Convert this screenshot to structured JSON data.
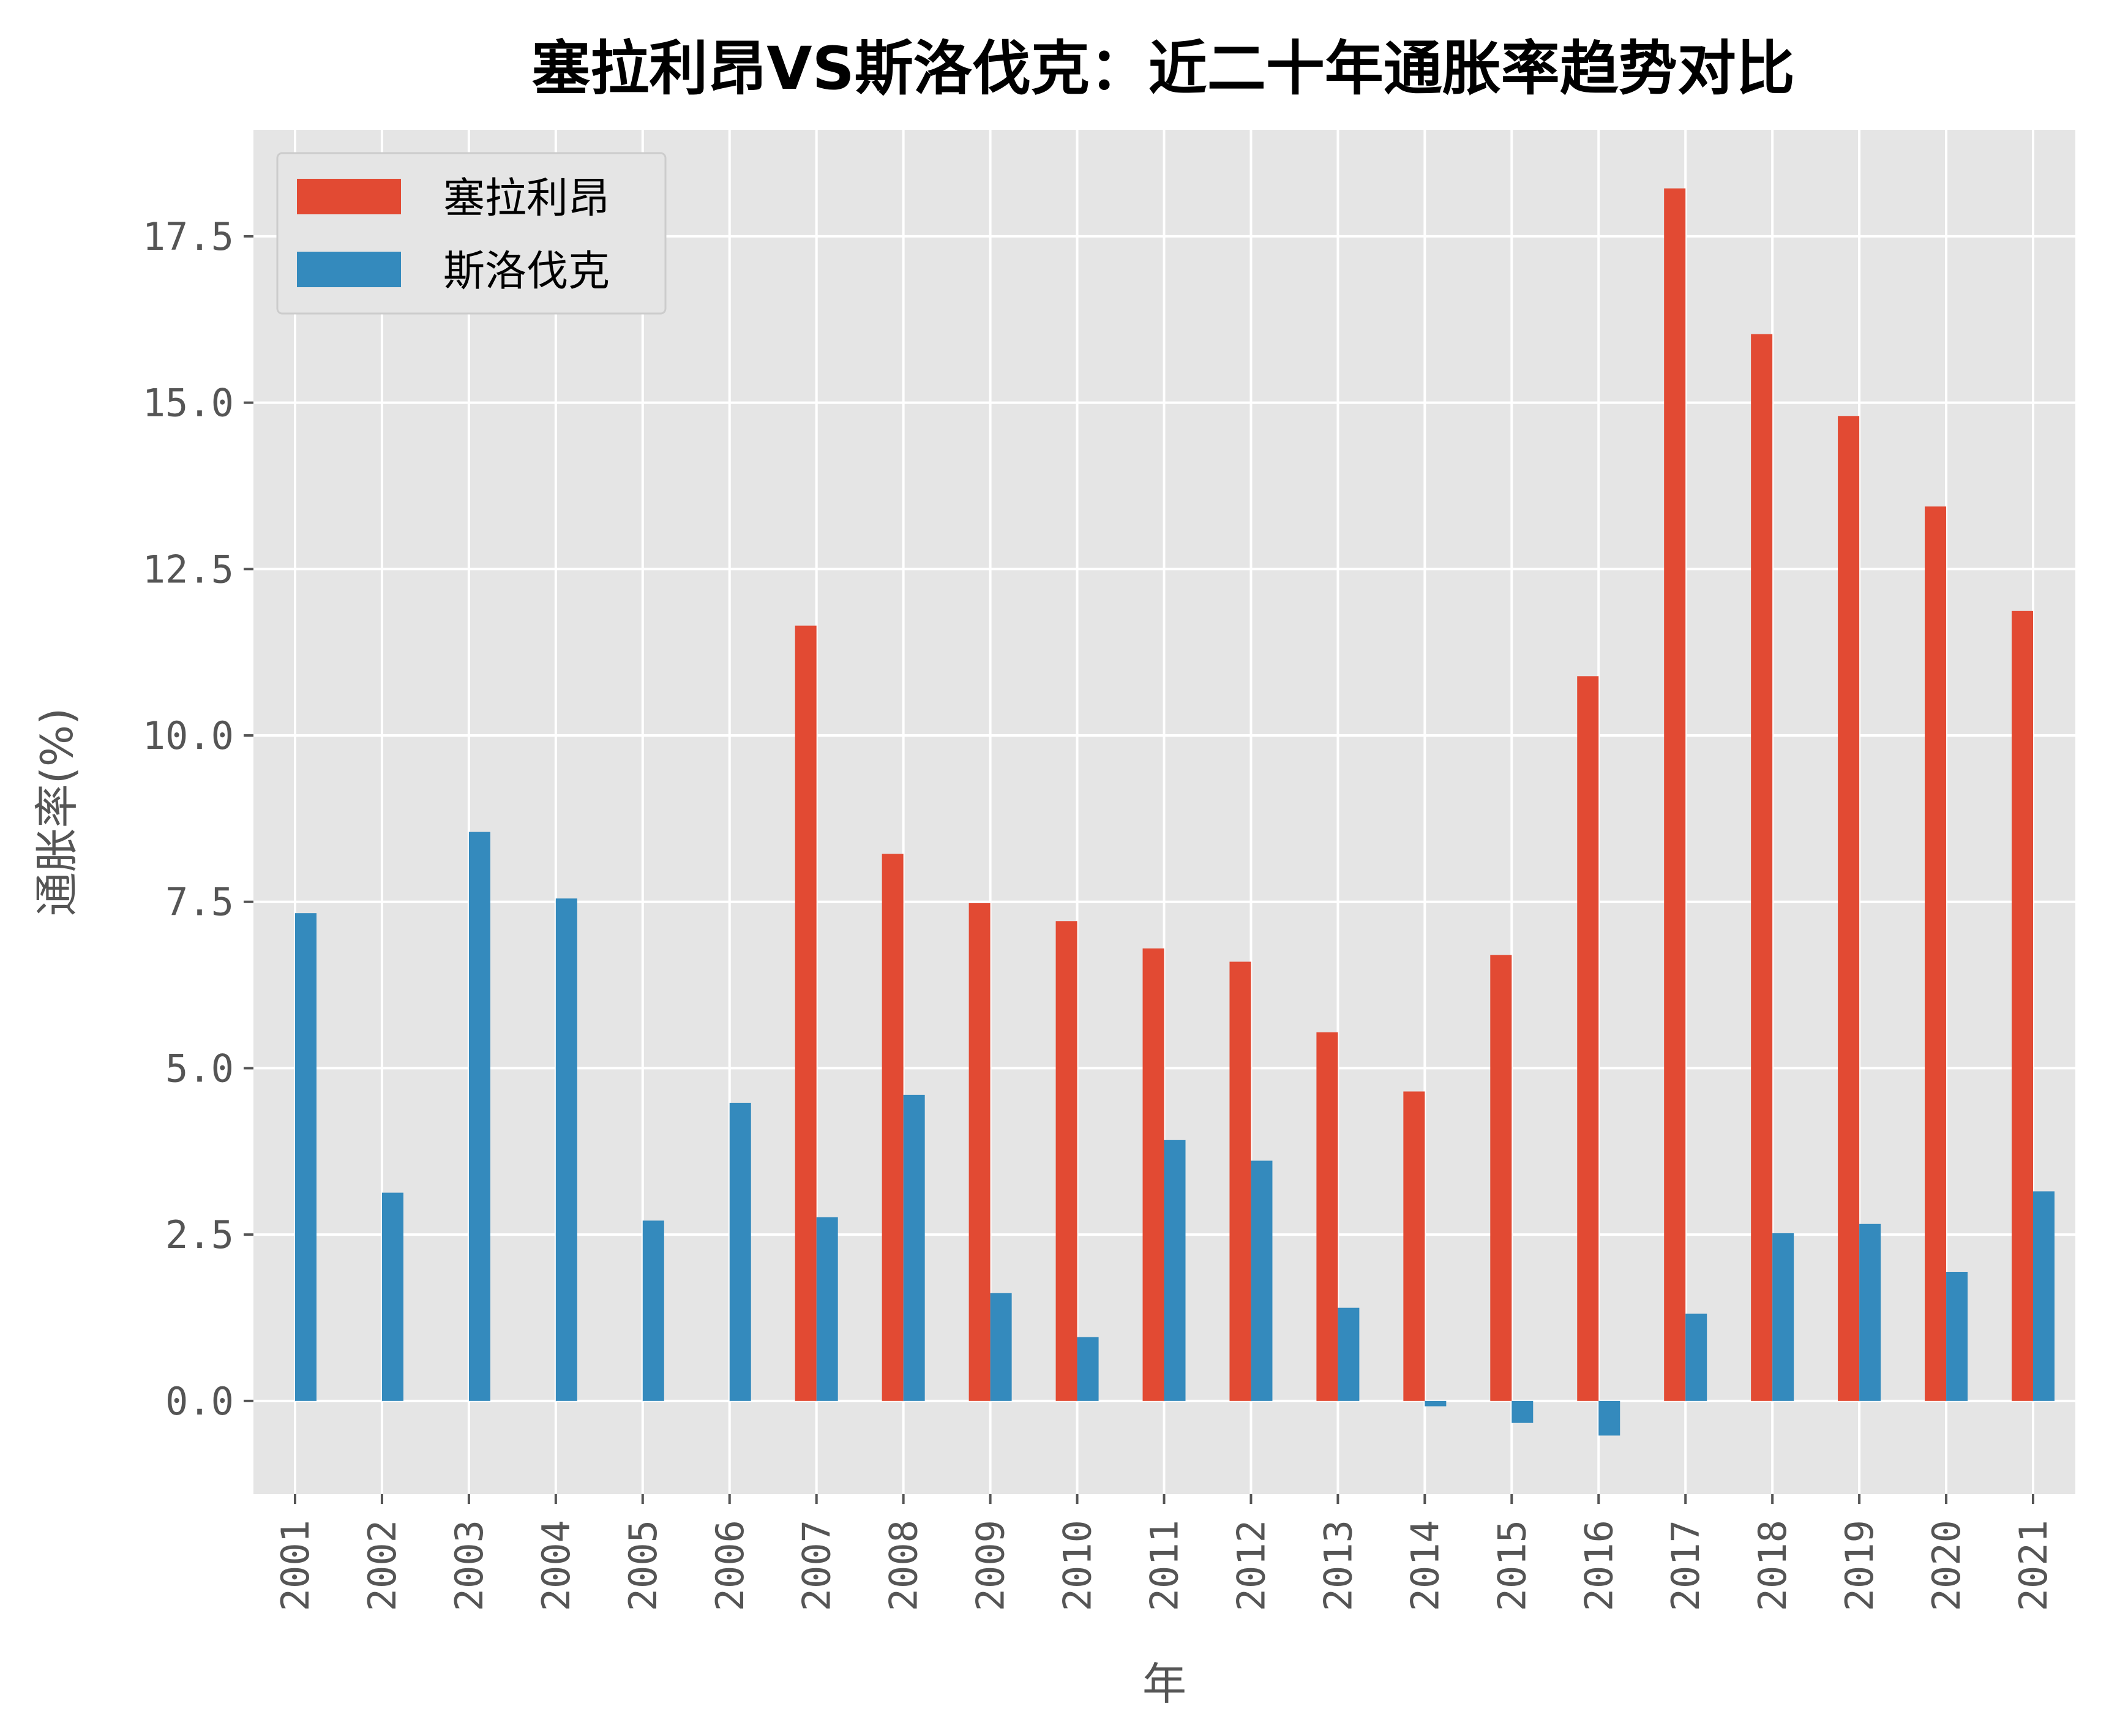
{
  "chart_data": {
    "type": "bar",
    "title": "塞拉利昂VS斯洛伐克：近二十年通胀率趋势对比",
    "xlabel": "年",
    "ylabel": "通胀率(%)",
    "categories": [
      "2001",
      "2002",
      "2003",
      "2004",
      "2005",
      "2006",
      "2007",
      "2008",
      "2009",
      "2010",
      "2011",
      "2012",
      "2013",
      "2014",
      "2015",
      "2016",
      "2017",
      "2018",
      "2019",
      "2020",
      "2021"
    ],
    "series": [
      {
        "name": "塞拉利昂",
        "color": "#E24A33",
        "values": [
          null,
          null,
          null,
          null,
          null,
          null,
          11.65,
          8.22,
          7.48,
          7.21,
          6.8,
          6.6,
          5.54,
          4.65,
          6.7,
          10.89,
          18.22,
          16.03,
          14.8,
          13.44,
          11.87
        ]
      },
      {
        "name": "斯洛伐克",
        "color": "#348ABD",
        "values": [
          7.33,
          3.13,
          8.55,
          7.55,
          2.71,
          4.48,
          2.76,
          4.6,
          1.62,
          0.96,
          3.92,
          3.61,
          1.4,
          -0.08,
          -0.33,
          -0.52,
          1.31,
          2.52,
          2.66,
          1.94,
          3.15
        ]
      }
    ],
    "yticks": [
      "0.0",
      "2.5",
      "5.0",
      "7.5",
      "10.0",
      "12.5",
      "15.0",
      "17.5"
    ],
    "ylim": [
      -1.4,
      19.1
    ],
    "grid": true,
    "legend_position": "top-left",
    "background_color": "#E5E5E5",
    "grid_color": "#FFFFFF"
  }
}
